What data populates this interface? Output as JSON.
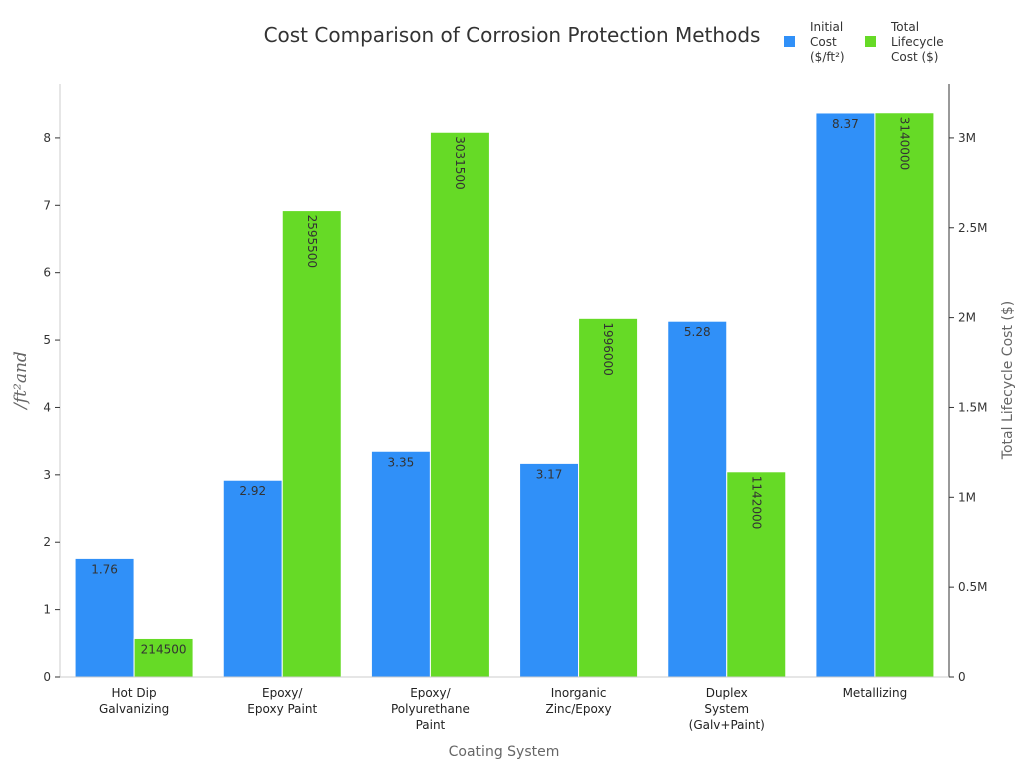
{
  "chart_data": {
    "type": "bar",
    "title": "Cost Comparison of Corrosion Protection Methods",
    "xlabel": "Coating System",
    "ylabel_left": "/ft²and",
    "ylabel_right": "Total Lifecycle Cost ($)",
    "categories": [
      [
        "Hot Dip",
        "Galvanizing"
      ],
      [
        "Epoxy/",
        "Epoxy Paint"
      ],
      [
        "Epoxy/",
        "Polyurethane",
        "Paint"
      ],
      [
        "Inorganic",
        "Zinc/Epoxy"
      ],
      [
        "Duplex",
        "System",
        "(Galv+Paint)"
      ],
      [
        "Metallizing"
      ]
    ],
    "series": [
      {
        "name": "Initial Cost ($/ft²)",
        "legend_lines": [
          "Initial",
          "Cost",
          "($/ft²)"
        ],
        "axis": "left",
        "color": "#3090F8",
        "values": [
          1.76,
          2.92,
          3.35,
          3.17,
          5.28,
          8.37
        ],
        "labels": [
          "1.76",
          "2.92",
          "3.35",
          "3.17",
          "5.28",
          "8.37"
        ]
      },
      {
        "name": "Total Lifecycle Cost ($)",
        "legend_lines": [
          "Total",
          "Lifecycle",
          "Cost ($)"
        ],
        "axis": "right",
        "color": "#66DA26",
        "values": [
          214500,
          2595500,
          3031500,
          1996000,
          1142000,
          3140000
        ],
        "labels": [
          "214500",
          "2595500",
          "3031500",
          "1996000",
          "1142000",
          "3140000"
        ]
      }
    ],
    "ylim_left": [
      0,
      8.8
    ],
    "yticks_left": [
      {
        "v": 0,
        "label": "0"
      },
      {
        "v": 1,
        "label": "1"
      },
      {
        "v": 2,
        "label": "2"
      },
      {
        "v": 3,
        "label": "3"
      },
      {
        "v": 4,
        "label": "4"
      },
      {
        "v": 5,
        "label": "5"
      },
      {
        "v": 6,
        "label": "6"
      },
      {
        "v": 7,
        "label": "7"
      },
      {
        "v": 8,
        "label": "8"
      }
    ],
    "ylim_right": [
      0,
      3300000
    ],
    "yticks_right": [
      {
        "v": 0,
        "label": "0"
      },
      {
        "v": 500000,
        "label": "0.5M"
      },
      {
        "v": 1000000,
        "label": "1M"
      },
      {
        "v": 1500000,
        "label": "1.5M"
      },
      {
        "v": 2000000,
        "label": "2M"
      },
      {
        "v": 2500000,
        "label": "2.5M"
      },
      {
        "v": 3000000,
        "label": "3M"
      }
    ],
    "legend_position": "top-right"
  }
}
